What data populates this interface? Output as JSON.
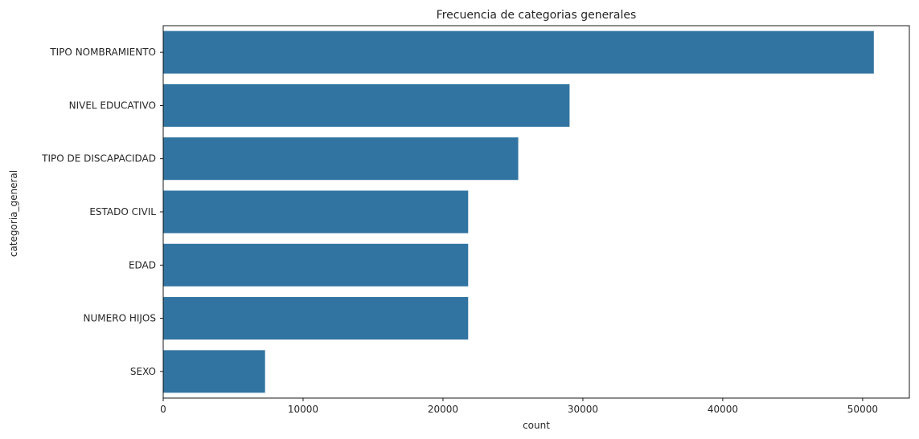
{
  "chart_data": {
    "type": "bar",
    "orientation": "horizontal",
    "title": "Frecuencia de categorias generales",
    "xlabel": "count",
    "ylabel": "categoria_general",
    "categories": [
      "TIPO NOMBRAMIENTO",
      "NIVEL EDUCATIVO",
      "TIPO DE DISCAPACIDAD",
      "ESTADO CIVIL",
      "EDAD",
      "NUMERO HIJOS",
      "SEXO"
    ],
    "values": [
      50800,
      29050,
      25380,
      21800,
      21800,
      21800,
      7280
    ],
    "xlim": [
      0,
      53340
    ],
    "xticks": [
      0,
      10000,
      20000,
      30000,
      40000,
      50000
    ],
    "xtick_labels": [
      "0",
      "10000",
      "20000",
      "30000",
      "40000",
      "50000"
    ],
    "bar_color": "#3274a1",
    "grid": false
  }
}
